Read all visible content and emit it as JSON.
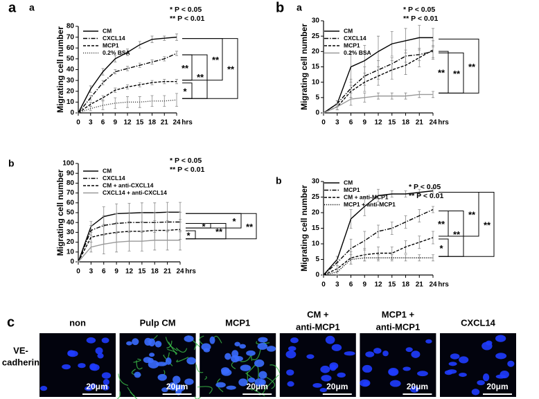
{
  "chart_data": [
    {
      "type": "line",
      "panel": "a",
      "subpanel": "a",
      "ylabel": "Migrating cell number",
      "xlabel": "hrs",
      "x": [
        0,
        3,
        6,
        9,
        12,
        15,
        18,
        21,
        24
      ],
      "xlim": [
        0,
        24
      ],
      "xticks": [
        0,
        3,
        6,
        9,
        12,
        15,
        18,
        21,
        24
      ],
      "ylim": [
        0,
        80
      ],
      "yticks": [
        0,
        10,
        20,
        30,
        40,
        50,
        60,
        70,
        80
      ],
      "notes": [
        "* P < 0.05",
        "** P < 0.01"
      ],
      "significance": [
        "**",
        "*",
        "**",
        "**",
        "**"
      ],
      "series": [
        {
          "name": "CM",
          "color": "#000000",
          "style": "solid",
          "values": [
            0,
            22,
            38,
            50,
            56,
            63,
            68,
            69,
            70
          ],
          "errors": [
            0,
            3,
            3,
            3,
            3,
            3,
            3,
            2,
            3
          ]
        },
        {
          "name": "CXCL14",
          "color": "#000000",
          "style": "dashdot",
          "values": [
            0,
            14,
            28,
            38,
            41,
            44,
            47,
            50,
            55
          ],
          "errors": [
            0,
            2,
            2,
            2,
            2,
            2,
            2,
            2,
            2
          ]
        },
        {
          "name": "MCP1",
          "color": "#000000",
          "style": "dashed",
          "values": [
            0,
            8,
            14,
            21,
            24,
            26,
            28,
            29,
            29
          ],
          "errors": [
            0,
            2,
            2,
            2,
            2,
            2,
            2,
            2,
            2
          ]
        },
        {
          "name": "0.2% BSA",
          "color": "#444444",
          "style": "dotted",
          "values": [
            0,
            4,
            7,
            9,
            10,
            10,
            11,
            11,
            12
          ],
          "errors": [
            0,
            2,
            4,
            5,
            5,
            5,
            5,
            5,
            6
          ]
        }
      ]
    },
    {
      "type": "line",
      "panel": "b",
      "subpanel": "a",
      "ylabel": "Migrating cell number",
      "xlabel": "hrs",
      "x": [
        0,
        3,
        6,
        9,
        12,
        15,
        18,
        21,
        24
      ],
      "xlim": [
        0,
        24
      ],
      "xticks": [
        0,
        3,
        6,
        9,
        12,
        15,
        18,
        21,
        24
      ],
      "ylim": [
        0,
        30
      ],
      "yticks": [
        0,
        5,
        10,
        15,
        20,
        25,
        30
      ],
      "notes": [
        "* P < 0.05",
        "** P < 0.01"
      ],
      "significance": [
        "**",
        "**",
        "**"
      ],
      "series": [
        {
          "name": "CM",
          "color": "#000000",
          "style": "solid",
          "values": [
            0,
            3,
            15,
            17,
            20,
            22.5,
            23.5,
            24.5,
            24.5
          ],
          "errors": [
            0,
            1,
            5,
            5,
            5,
            4,
            4,
            4,
            3
          ]
        },
        {
          "name": "CXCL14",
          "color": "#000000",
          "style": "dashdot",
          "values": [
            0,
            3,
            8,
            12,
            14,
            16,
            18.5,
            19,
            20
          ],
          "errors": [
            0,
            1,
            3,
            3,
            3,
            2,
            2,
            2,
            2
          ]
        },
        {
          "name": "MCP1",
          "color": "#000000",
          "style": "dashed",
          "values": [
            0,
            2,
            7,
            10,
            12,
            14,
            15.5,
            18,
            20.5
          ],
          "errors": [
            0,
            1,
            2,
            3,
            3,
            3,
            3,
            3,
            3
          ]
        },
        {
          "name": "0.2% BSA",
          "color": "#999999",
          "style": "solid",
          "values": [
            0,
            2,
            4.5,
            5,
            5.5,
            5.5,
            5.5,
            6,
            6
          ],
          "errors": [
            0,
            1,
            2,
            1.5,
            1,
            1,
            1,
            1,
            1
          ]
        }
      ]
    },
    {
      "type": "line",
      "subpanel": "b",
      "ylabel": "Migrating cell number",
      "xlabel": "hrs",
      "x": [
        0,
        3,
        6,
        9,
        12,
        15,
        18,
        21,
        24
      ],
      "xlim": [
        0,
        24
      ],
      "xticks": [
        0,
        3,
        6,
        9,
        12,
        15,
        18,
        21,
        24
      ],
      "ylim": [
        0,
        100
      ],
      "yticks": [
        0,
        10,
        20,
        30,
        40,
        50,
        60,
        70,
        80,
        90,
        100
      ],
      "notes": [
        "* P < 0.05",
        "** P < 0.01"
      ],
      "significance": [
        "*",
        "*",
        "**",
        "*",
        "**"
      ],
      "series": [
        {
          "name": "CM",
          "color": "#000000",
          "style": "solid",
          "values": [
            0,
            36,
            46,
            49,
            49.5,
            50,
            50,
            50.5,
            50.5
          ],
          "errors": [
            0,
            5,
            10,
            10,
            10,
            10,
            10,
            10,
            10
          ]
        },
        {
          "name": "CXCL14",
          "color": "#000000",
          "style": "dashdot",
          "values": [
            0,
            32,
            37,
            39,
            40,
            40,
            40,
            40.5,
            40.5
          ],
          "errors": [
            0,
            5,
            10,
            10,
            10,
            10,
            10,
            10,
            10
          ]
        },
        {
          "name": "CM + anti-CXCL14",
          "color": "#000000",
          "style": "dashed",
          "values": [
            0,
            25,
            28,
            30,
            31,
            31,
            32,
            32,
            33
          ],
          "errors": [
            0,
            5,
            10,
            10,
            10,
            10,
            10,
            10,
            10
          ]
        },
        {
          "name": "CXCL14 + anti-CXCL14",
          "color": "#999999",
          "style": "solid",
          "values": [
            0,
            15,
            18,
            20,
            21,
            21,
            22,
            22,
            22
          ],
          "errors": [
            0,
            5,
            10,
            10,
            10,
            10,
            10,
            10,
            10
          ]
        }
      ]
    },
    {
      "type": "line",
      "subpanel": "b",
      "ylabel": "Migrating cell number",
      "xlabel": "hrs",
      "x": [
        0,
        3,
        6,
        9,
        12,
        15,
        18,
        21,
        24
      ],
      "xlim": [
        0,
        24
      ],
      "xticks": [
        0,
        3,
        6,
        9,
        12,
        15,
        18,
        21,
        24
      ],
      "ylim": [
        0,
        30
      ],
      "yticks": [
        0,
        5,
        10,
        15,
        20,
        25,
        30
      ],
      "notes": [
        "* P < 0.05",
        "** P < 0.01"
      ],
      "significance": [
        "**",
        "*",
        "**",
        "**",
        "**"
      ],
      "series": [
        {
          "name": "CM",
          "color": "#000000",
          "style": "solid",
          "values": [
            0,
            5,
            18,
            22,
            25.5,
            26,
            26,
            26.5,
            27
          ],
          "errors": [
            0,
            1,
            3,
            3,
            2,
            1,
            1,
            1,
            1
          ]
        },
        {
          "name": "MCP1",
          "color": "#000000",
          "style": "dashdot",
          "values": [
            0,
            4,
            8.5,
            11,
            14,
            15,
            17,
            19,
            21
          ],
          "errors": [
            0,
            1,
            3,
            3,
            2,
            2,
            2,
            2,
            1
          ]
        },
        {
          "name": "CM + anti-MCP1",
          "color": "#000000",
          "style": "dashed",
          "values": [
            0,
            2,
            5.5,
            6.5,
            7,
            7,
            9,
            10.5,
            12
          ],
          "errors": [
            0,
            1,
            2,
            2,
            2,
            2,
            2,
            2,
            2
          ]
        },
        {
          "name": "MCP1 + anti-MCP1",
          "color": "#000000",
          "style": "dotted",
          "values": [
            0,
            1,
            5,
            5.5,
            5.5,
            5.5,
            5.5,
            5.5,
            5.5
          ],
          "errors": [
            0,
            1,
            1.5,
            1,
            1,
            1,
            1,
            1,
            1
          ]
        }
      ]
    }
  ],
  "panel_c": {
    "label": "c",
    "row_label": [
      "VE-",
      "cadherin"
    ],
    "columns": [
      [
        "non"
      ],
      [
        "Pulp CM"
      ],
      [
        "MCP1"
      ],
      [
        "CM +",
        "anti-MCP1"
      ],
      [
        "MCP1 +",
        "anti-MCP1"
      ],
      [
        "CXCL14"
      ]
    ],
    "scale_bar": "20μm"
  }
}
